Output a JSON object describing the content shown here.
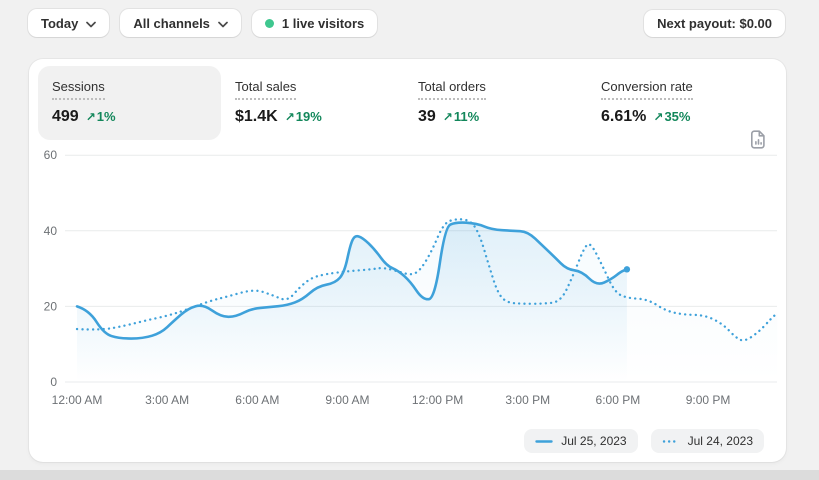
{
  "topbar": {
    "date_range": "Today",
    "channels": "All channels",
    "live_visitors": "1 live visitors",
    "next_payout": "Next payout: $0.00"
  },
  "metrics": [
    {
      "label": "Sessions",
      "value": "499",
      "delta": "1%",
      "selected": true
    },
    {
      "label": "Total sales",
      "value": "$1.4K",
      "delta": "19%",
      "selected": false
    },
    {
      "label": "Total orders",
      "value": "39",
      "delta": "11%",
      "selected": false
    },
    {
      "label": "Conversion rate",
      "value": "6.61%",
      "delta": "35%",
      "selected": false
    }
  ],
  "icons": {
    "delta_arrow": "↗",
    "report": "report-chart-icon",
    "chevron": "chevron-down-icon",
    "live_dot": "live-dot"
  },
  "colors": {
    "accent_blue": "#3ea1da",
    "success_green": "#13875b",
    "live_dot_green": "#3fc78f",
    "grid_line": "#e9ebec",
    "axis_text": "#6d7175",
    "page_bg": "#f1f1f1",
    "card_bg": "#ffffff"
  },
  "chart_data": {
    "type": "line",
    "xlabel": "",
    "ylabel": "",
    "grid": true,
    "legend_position": "bottom-right",
    "x_axis": {
      "range_hours": [
        0,
        24
      ],
      "tick_hours": [
        0,
        3,
        6,
        9,
        12,
        15,
        18,
        21
      ],
      "tick_labels": [
        "12:00 AM",
        "3:00 AM",
        "6:00 AM",
        "9:00 AM",
        "12:00 PM",
        "3:00 PM",
        "6:00 PM",
        "9:00 PM"
      ]
    },
    "y_axis": {
      "range": [
        0,
        60
      ],
      "ticks": [
        0,
        20,
        40,
        60
      ]
    },
    "series": [
      {
        "name": "Jul 25, 2023",
        "style": "solid",
        "color": "#3ea1da",
        "end_dot": true,
        "points": [
          [
            0,
            20
          ],
          [
            0.4,
            19
          ],
          [
            0.9,
            12.8
          ],
          [
            1.4,
            11.5
          ],
          [
            2.2,
            11.5
          ],
          [
            2.8,
            13
          ],
          [
            3.2,
            16
          ],
          [
            3.7,
            19.5
          ],
          [
            4.2,
            20.6
          ],
          [
            4.8,
            17.2
          ],
          [
            5.3,
            17.3
          ],
          [
            5.8,
            19.4
          ],
          [
            6.4,
            19.8
          ],
          [
            7.0,
            20.3
          ],
          [
            7.5,
            21.8
          ],
          [
            8.0,
            25.3
          ],
          [
            8.6,
            26.2
          ],
          [
            8.9,
            29
          ],
          [
            9.1,
            36.5
          ],
          [
            9.25,
            38.8
          ],
          [
            9.5,
            38.2
          ],
          [
            9.9,
            35.2
          ],
          [
            10.3,
            30.8
          ],
          [
            10.7,
            29.4
          ],
          [
            11.1,
            26.5
          ],
          [
            11.5,
            21.8
          ],
          [
            11.9,
            22
          ],
          [
            12.25,
            41
          ],
          [
            12.6,
            42.3
          ],
          [
            13.3,
            42
          ],
          [
            13.8,
            40.3
          ],
          [
            14.5,
            40
          ],
          [
            15.0,
            39.8
          ],
          [
            15.5,
            36
          ],
          [
            15.9,
            33
          ],
          [
            16.3,
            29.8
          ],
          [
            16.8,
            29.3
          ],
          [
            17.3,
            25.4
          ],
          [
            17.8,
            27.3
          ],
          [
            18.1,
            29.2
          ],
          [
            18.3,
            29.8
          ]
        ]
      },
      {
        "name": "Jul 24, 2023",
        "style": "dotted",
        "color": "#3ea1da",
        "end_dot": false,
        "points": [
          [
            0,
            14
          ],
          [
            0.8,
            13.7
          ],
          [
            1.6,
            14.9
          ],
          [
            2.3,
            16.3
          ],
          [
            3.0,
            17.5
          ],
          [
            3.6,
            19
          ],
          [
            4.4,
            21.4
          ],
          [
            5.0,
            22.6
          ],
          [
            5.9,
            24.6
          ],
          [
            6.5,
            23
          ],
          [
            7.0,
            21.3
          ],
          [
            7.4,
            25
          ],
          [
            7.8,
            27.6
          ],
          [
            8.3,
            28.6
          ],
          [
            9.0,
            29.3
          ],
          [
            9.8,
            29.8
          ],
          [
            10.2,
            30.3
          ],
          [
            10.8,
            29
          ],
          [
            11.1,
            28.3
          ],
          [
            11.4,
            29.3
          ],
          [
            11.8,
            34.5
          ],
          [
            12.2,
            42
          ],
          [
            12.6,
            43.2
          ],
          [
            13.1,
            42.8
          ],
          [
            13.4,
            39
          ],
          [
            13.7,
            31
          ],
          [
            14.0,
            23.5
          ],
          [
            14.3,
            21
          ],
          [
            14.8,
            20.7
          ],
          [
            15.5,
            20.7
          ],
          [
            16.1,
            21.2
          ],
          [
            16.5,
            28
          ],
          [
            16.9,
            36
          ],
          [
            17.1,
            36.8
          ],
          [
            17.5,
            30.5
          ],
          [
            17.9,
            23.7
          ],
          [
            18.3,
            22.2
          ],
          [
            19.0,
            21.9
          ],
          [
            19.6,
            18.8
          ],
          [
            20.2,
            17.8
          ],
          [
            20.9,
            17.7
          ],
          [
            21.5,
            15.3
          ],
          [
            21.9,
            11.9
          ],
          [
            22.2,
            10.6
          ],
          [
            22.7,
            13.3
          ],
          [
            23.1,
            16.8
          ],
          [
            23.3,
            18.2
          ]
        ]
      }
    ]
  }
}
